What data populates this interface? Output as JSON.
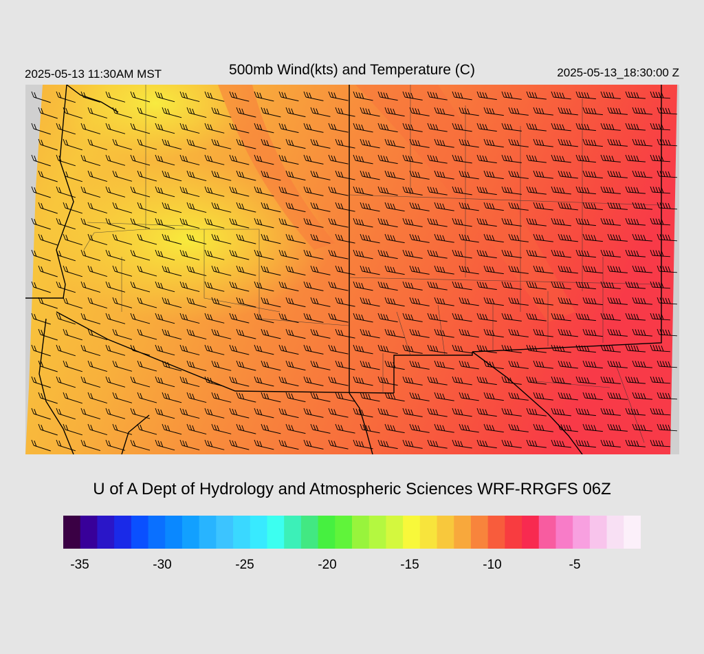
{
  "header": {
    "local_time": "2025-05-13 11:30AM MST",
    "title": "500mb Wind(kts) and Temperature (C)",
    "utc_time": "2025-05-13_18:30:00 Z"
  },
  "credit": "U of A Dept of Hydrology and Atmospheric Sciences WRF-RRGFS 06Z",
  "colorbar": {
    "colors": [
      "#3a0044",
      "#380099",
      "#2a16c8",
      "#1a2ae8",
      "#0a50ff",
      "#0a70ff",
      "#0a88ff",
      "#12a0ff",
      "#28b4ff",
      "#3cc4ff",
      "#3ad8ff",
      "#38eaff",
      "#3cfff0",
      "#3cf0b8",
      "#42e882",
      "#46f040",
      "#60f43a",
      "#98f43c",
      "#b4f840",
      "#d4f83e",
      "#f8f83a",
      "#f8e43c",
      "#f8c83c",
      "#f8a83c",
      "#f8843c",
      "#f85c3c",
      "#f83c40",
      "#f82a50",
      "#f85ca0",
      "#f87cc8",
      "#f8a0e0",
      "#f8c4ec",
      "#f8e0f4",
      "#fcf0fa"
    ],
    "ticks": [
      "-35",
      "-30",
      "-25",
      "-20",
      "-15",
      "-10",
      "-5"
    ],
    "tick_values": [
      -35,
      -30,
      -25,
      -20,
      -15,
      -10,
      -5
    ]
  }
}
